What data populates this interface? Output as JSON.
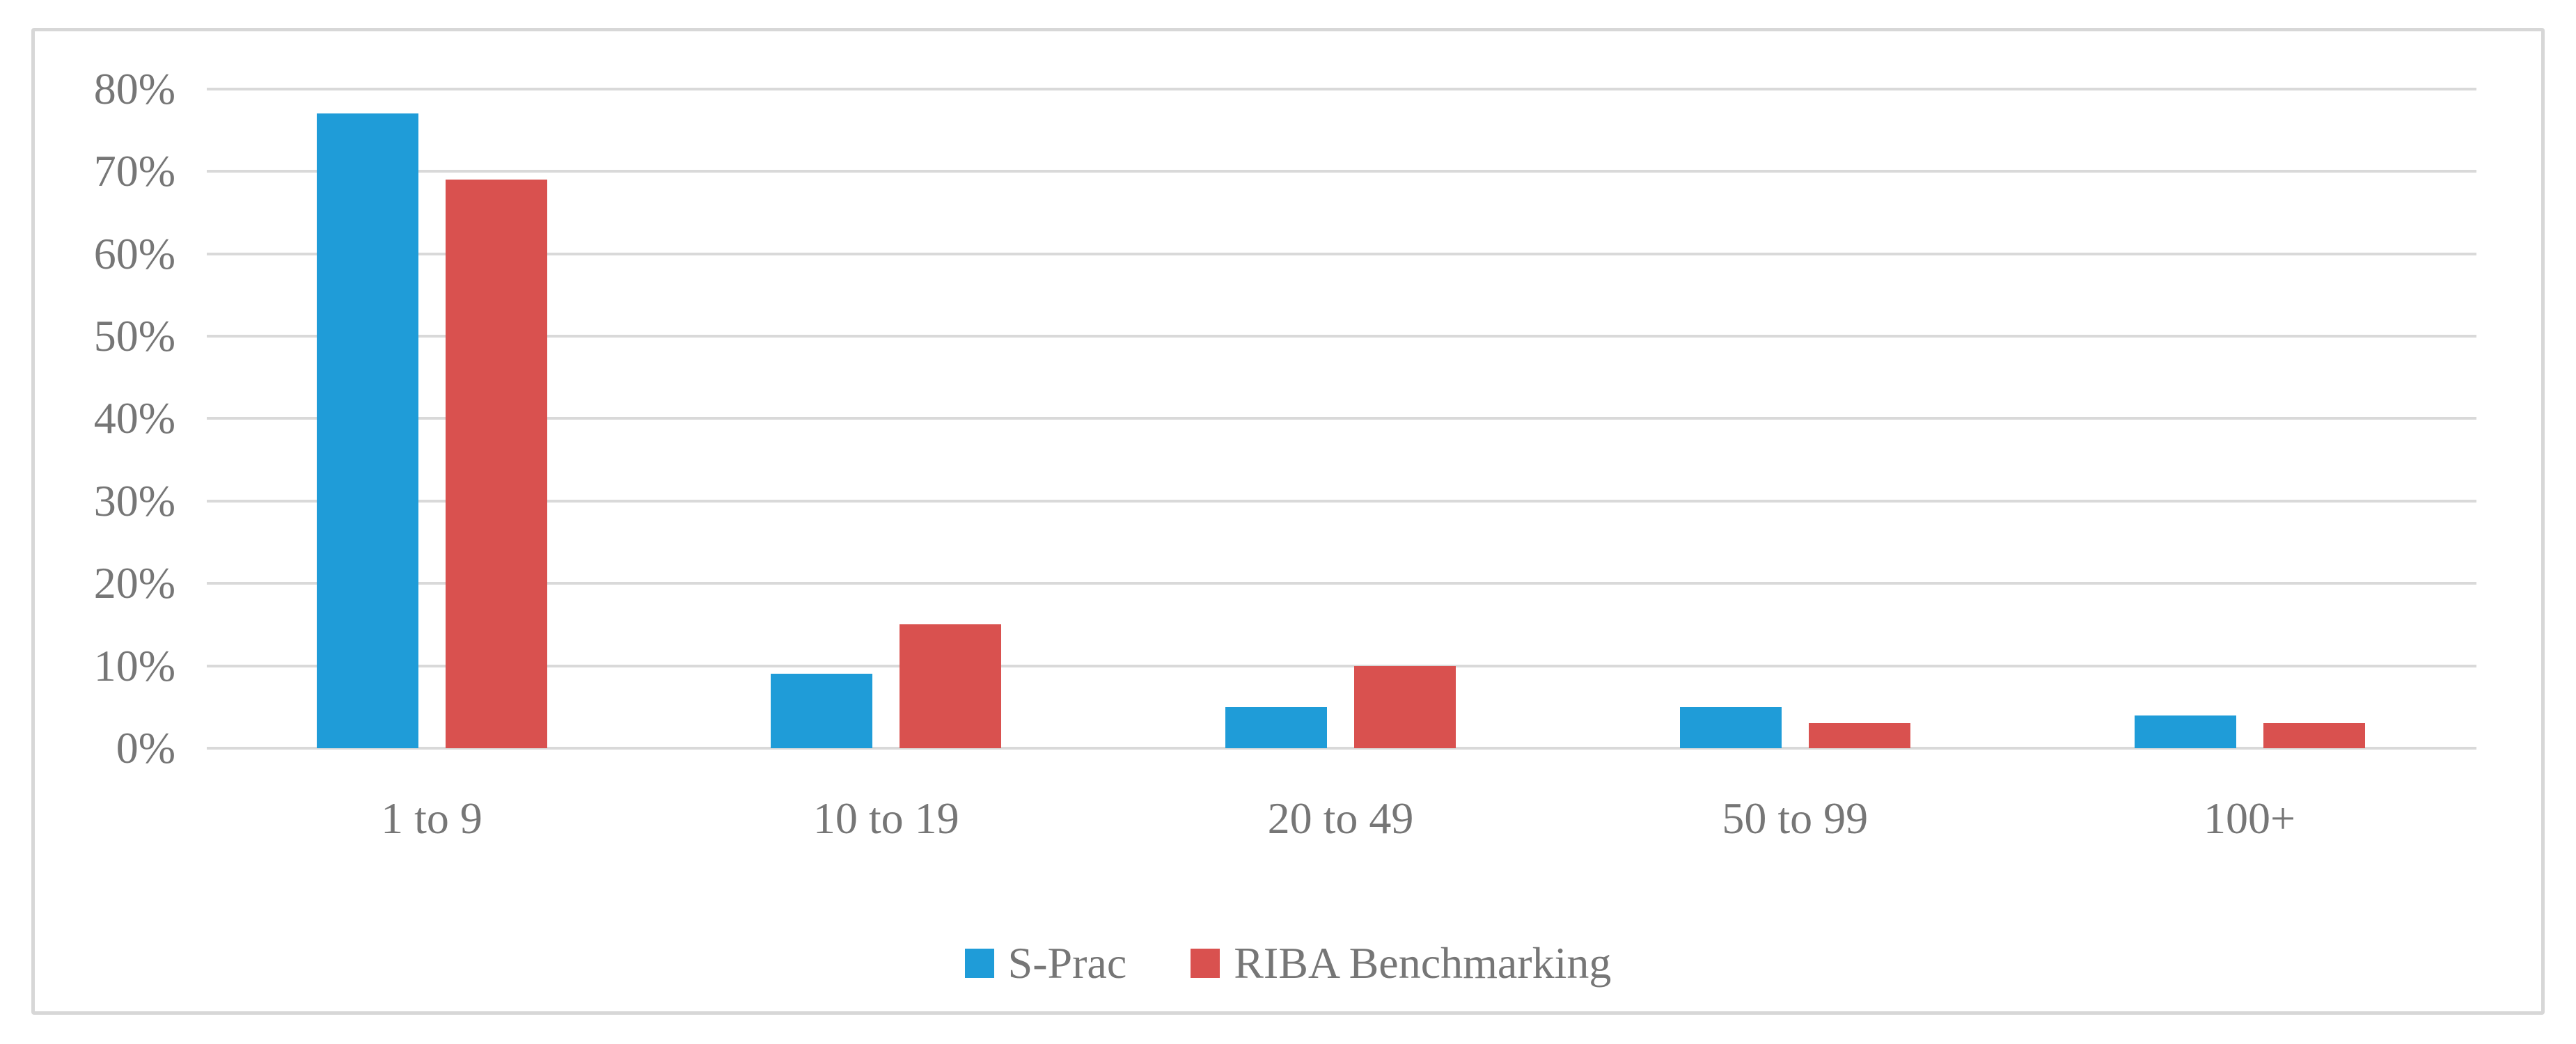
{
  "figure": {
    "background": "#ffffff",
    "border_color": "#d7d7d7"
  },
  "chart_data": {
    "type": "bar",
    "title": "",
    "xlabel": "",
    "ylabel": "",
    "categories": [
      "1 to 9",
      "10 to 19",
      "20 to 49",
      "50 to 99",
      "100+"
    ],
    "series": [
      {
        "name": "S-Prac",
        "color": "#1f9cd8",
        "values": [
          77,
          9,
          5,
          5,
          4
        ]
      },
      {
        "name": "RIBA Benchmarking",
        "color": "#d9514f",
        "values": [
          69,
          15,
          10,
          3,
          3
        ]
      }
    ],
    "value_unit": "percent",
    "ylim": [
      0,
      80
    ],
    "ytick_step": 10,
    "ytick_labels": [
      "0%",
      "10%",
      "20%",
      "30%",
      "40%",
      "50%",
      "60%",
      "70%",
      "80%"
    ],
    "grid": "horizontal",
    "gridline_color": "#d9d9d9",
    "tick_label_color": "#767676",
    "legend_position": "bottom"
  }
}
